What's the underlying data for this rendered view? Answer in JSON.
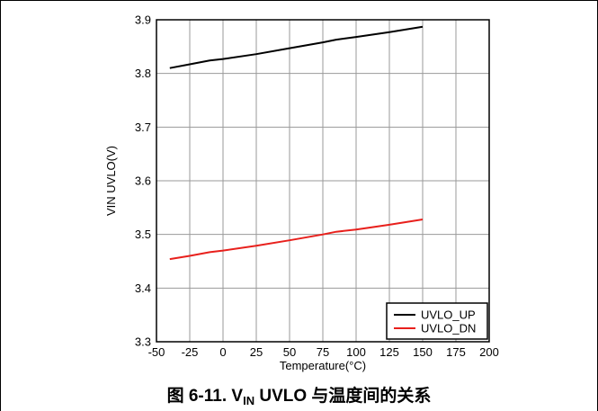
{
  "caption": {
    "prefix": "图 6-11. V",
    "sub": "IN",
    "suffix": " UVLO 与温度间的关系"
  },
  "chart_data": {
    "type": "line",
    "xlabel": "Temperature(°C)",
    "ylabel": "VIN UVLO(V)",
    "xlim": [
      -50,
      200
    ],
    "ylim": [
      3.3,
      3.9
    ],
    "xticks": [
      -50,
      -25,
      0,
      25,
      50,
      75,
      100,
      125,
      150,
      175,
      200
    ],
    "xtick_labels": [
      "-50",
      "-25",
      "0",
      "25",
      "50",
      "75",
      "100",
      "125",
      "150",
      "175",
      "200"
    ],
    "yticks": [
      3.3,
      3.4,
      3.5,
      3.6,
      3.7,
      3.8,
      3.9
    ],
    "ytick_labels": [
      "3.3",
      "3.4",
      "3.5",
      "3.6",
      "3.7",
      "3.8",
      "3.9"
    ],
    "grid": true,
    "legend": "bottom-right",
    "series": [
      {
        "name": "UVLO_UP",
        "color": "#000000",
        "x": [
          -40,
          -25,
          -10,
          0,
          25,
          50,
          75,
          85,
          100,
          125,
          150
        ],
        "y": [
          3.81,
          3.817,
          3.824,
          3.827,
          3.836,
          3.847,
          3.858,
          3.863,
          3.868,
          3.877,
          3.887
        ]
      },
      {
        "name": "UVLO_DN",
        "color": "#e8201c",
        "x": [
          -40,
          -25,
          -10,
          0,
          25,
          50,
          75,
          85,
          100,
          125,
          150
        ],
        "y": [
          3.454,
          3.46,
          3.467,
          3.47,
          3.479,
          3.489,
          3.5,
          3.505,
          3.509,
          3.518,
          3.528
        ]
      }
    ]
  }
}
